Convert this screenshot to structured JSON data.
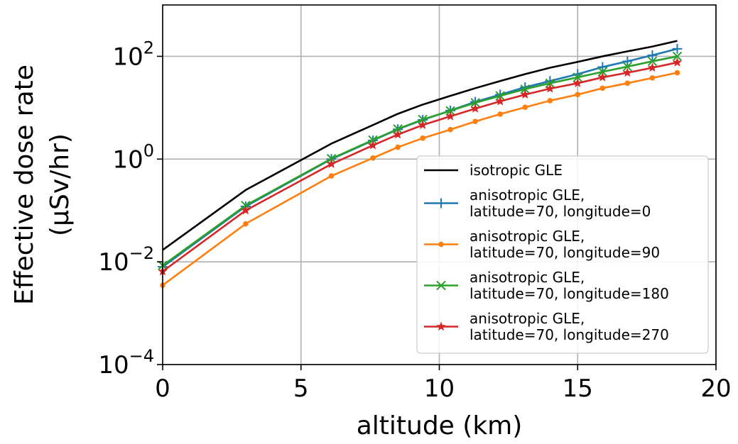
{
  "chart_data": {
    "type": "line",
    "xlabel": "altitude (km)",
    "ylabel_line1": "Effective dose rate",
    "ylabel_line2": "(μSv/hr)",
    "xlim": [
      0,
      20
    ],
    "ylim": [
      0.0001,
      1000
    ],
    "yscale": "log",
    "grid": true,
    "legend_position": "lower-right",
    "x_ticks": [
      {
        "value": 0,
        "label": "0"
      },
      {
        "value": 5,
        "label": "5"
      },
      {
        "value": 10,
        "label": "10"
      },
      {
        "value": 15,
        "label": "15"
      },
      {
        "value": 20,
        "label": "20"
      }
    ],
    "y_ticks": [
      {
        "value": 0.0001,
        "base": "10",
        "exp": "−4"
      },
      {
        "value": 0.01,
        "base": "10",
        "exp": "−2"
      },
      {
        "value": 1,
        "base": "10",
        "exp": "0"
      },
      {
        "value": 100,
        "base": "10",
        "exp": "2"
      }
    ],
    "series": [
      {
        "legend_lines": [
          "isotropic GLE"
        ],
        "color": "#000000",
        "marker": "none",
        "x": [
          0,
          3.0,
          6.1,
          7.6,
          8.5,
          9.4,
          10.4,
          11.3,
          12.2,
          13.1,
          14.0,
          15.0,
          15.9,
          16.8,
          17.7,
          18.6
        ],
        "y": [
          0.017,
          0.25,
          2.0,
          4.6,
          7.6,
          11.5,
          17,
          24,
          33,
          45,
          60,
          78,
          100,
          125,
          155,
          200
        ]
      },
      {
        "legend_lines": [
          "anisotropic GLE,",
          "latitude=70, longitude=0"
        ],
        "color": "#1f77b4",
        "marker": "plus",
        "x": [
          0,
          3.0,
          6.1,
          7.6,
          8.5,
          9.4,
          10.4,
          11.3,
          12.2,
          13.1,
          14.0,
          15.0,
          15.9,
          16.8,
          17.7,
          18.6
        ],
        "y": [
          0.008,
          0.12,
          1.0,
          2.3,
          3.8,
          5.8,
          8.8,
          13,
          18,
          25,
          33,
          45,
          62,
          80,
          105,
          140
        ]
      },
      {
        "legend_lines": [
          "anisotropic GLE,",
          "latitude=70, longitude=90"
        ],
        "color": "#ff7f0e",
        "marker": "circle",
        "x": [
          0,
          3.0,
          6.1,
          7.6,
          8.5,
          9.4,
          10.4,
          11.3,
          12.2,
          13.1,
          14.0,
          15.0,
          15.9,
          16.8,
          17.7,
          18.6
        ],
        "y": [
          0.0035,
          0.055,
          0.47,
          1.05,
          1.7,
          2.55,
          3.75,
          5.4,
          7.5,
          10.2,
          13.7,
          18,
          24,
          30,
          38,
          48
        ]
      },
      {
        "legend_lines": [
          "anisotropic GLE,",
          "latitude=70, longitude=180"
        ],
        "color": "#2ca02c",
        "marker": "x",
        "x": [
          0,
          3.0,
          6.1,
          7.6,
          8.5,
          9.4,
          10.4,
          11.3,
          12.2,
          13.1,
          14.0,
          15.0,
          15.9,
          16.8,
          17.7,
          18.6
        ],
        "y": [
          0.0085,
          0.125,
          1.02,
          2.35,
          3.85,
          5.9,
          8.7,
          12.5,
          17,
          23,
          30,
          39,
          50,
          63,
          80,
          100
        ]
      },
      {
        "legend_lines": [
          "anisotropic GLE,",
          "latitude=70, longitude=270"
        ],
        "color": "#d62728",
        "marker": "star",
        "x": [
          0,
          3.0,
          6.1,
          7.6,
          8.5,
          9.4,
          10.4,
          11.3,
          12.2,
          13.1,
          14.0,
          15.0,
          15.9,
          16.8,
          17.7,
          18.6
        ],
        "y": [
          0.0065,
          0.1,
          0.8,
          1.85,
          3.0,
          4.6,
          6.8,
          9.6,
          13.3,
          18,
          23.5,
          30,
          39,
          48,
          60,
          76
        ]
      }
    ]
  }
}
